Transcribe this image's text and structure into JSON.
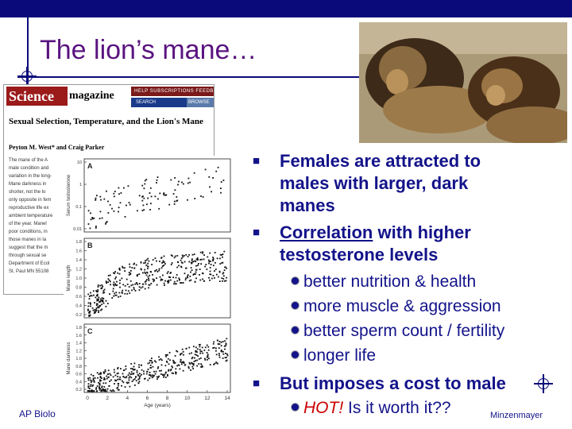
{
  "slide": {
    "title": "The lion’s mane…",
    "footer_left": "AP Biolo",
    "footer_right": "Minzenmayer"
  },
  "magazine": {
    "logo": "Science",
    "name": "magazine",
    "nav": "HELP   SUBSCRIPTIONS   FEEDB",
    "search": "SEARCH",
    "browse": "BROWSE",
    "article_title": "Sexual Selection, Temperature, and the Lion's Mane",
    "authors": "Peyton M. West* and Craig Parker",
    "body_lines": [
      "The mane of the A",
      "male condition and",
      "variation in the long-",
      "Mane darkness in",
      "shorter, not the lo",
      "only opposite in fem",
      "reproductive life ex",
      "ambient temperature",
      "of the year. Manel",
      "poor conditions, in",
      "those manes in la",
      "suggest that the m",
      "through sexual se",
      "",
      "Department of Ecol",
      "St. Paul MN 55108"
    ]
  },
  "bullets": {
    "b1": "Females are attracted to",
    "b1_l2": "males with larger, dark",
    "b1_l3": "manes",
    "b2_underlined": "Correlation",
    "b2_rest": " with higher",
    "b2_l2": "testosterone levels",
    "sub1": "better nutrition & health",
    "sub2": "more muscle & aggression",
    "sub3": "better sperm count / fertility",
    "sub4": "longer life",
    "b3": "But imposes a cost to male",
    "sub5_hot": "HOT!",
    "sub5_rest": "  Is it worth it??"
  },
  "chart_data": [
    {
      "type": "scatter",
      "panel": "A",
      "ylabel": "Serum testosterone",
      "yticks": [
        "10",
        "1",
        "0.1",
        "0.01"
      ],
      "trend": "increasing"
    },
    {
      "type": "scatter",
      "panel": "B",
      "ylabel": "Mane length",
      "yticks": [
        "1.8",
        "1.6",
        "1.4",
        "1.2",
        "1.0",
        "0.8",
        "0.6",
        "0.4",
        "0.2"
      ],
      "trend": "increasing, saturating"
    },
    {
      "type": "scatter",
      "panel": "C",
      "ylabel": "Mane darkness",
      "xlabel": "Age (years)",
      "xticks": [
        "0",
        "2",
        "4",
        "6",
        "8",
        "10",
        "12",
        "14"
      ],
      "yticks": [
        "1.8",
        "1.6",
        "1.4",
        "1.2",
        "1.0",
        "0.8",
        "0.6",
        "0.4",
        "0.2"
      ],
      "xlim": [
        0,
        14
      ],
      "trend": "increasing"
    }
  ],
  "colors": {
    "title": "#5a1380",
    "bullet_text": "#13138a",
    "bar": "#0a0a7a",
    "hot": "#cc0000"
  }
}
